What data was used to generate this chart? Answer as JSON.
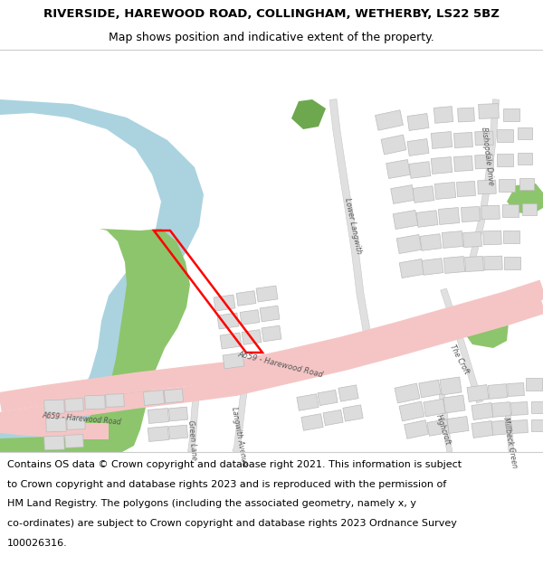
{
  "title_line1": "RIVERSIDE, HAREWOOD ROAD, COLLINGHAM, WETHERBY, LS22 5BZ",
  "title_line2": "Map shows position and indicative extent of the property.",
  "footer_lines": [
    "Contains OS data © Crown copyright and database right 2021. This information is subject",
    "to Crown copyright and database rights 2023 and is reproduced with the permission of",
    "HM Land Registry. The polygons (including the associated geometry, namely x, y",
    "co-ordinates) are subject to Crown copyright and database rights 2023 Ordnance Survey",
    "100026316."
  ],
  "title_fontsize": 9.5,
  "subtitle_fontsize": 9.0,
  "footer_fontsize": 8.0,
  "map_bg": "#f0eeec",
  "water_color": "#aad3df",
  "green_color": "#8dc56c",
  "green2_color": "#6da84e",
  "road_pink": "#f5c5c5",
  "building_color": "#dcdcdc",
  "building_edge": "#bbbbbb",
  "plot_color": "#ff0000",
  "road_gray": "#e0e0e0",
  "road_gray_edge": "#c8c8c8"
}
